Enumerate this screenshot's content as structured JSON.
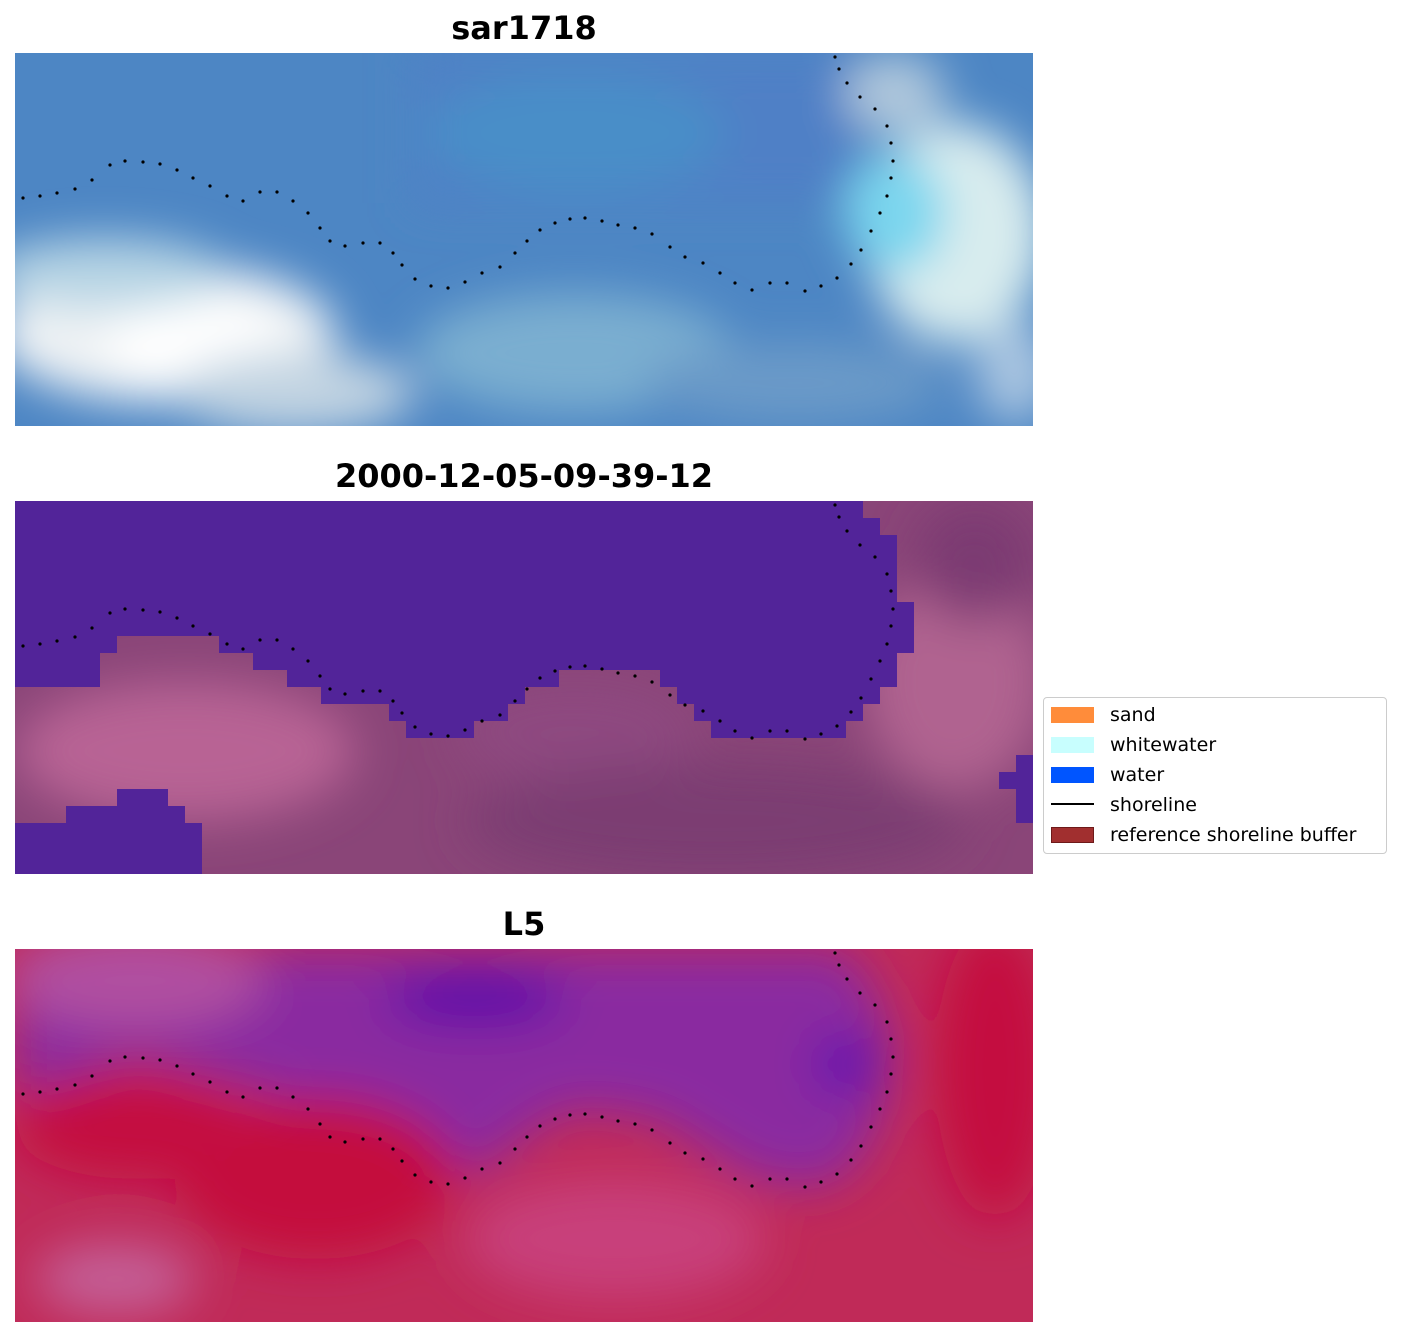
{
  "panels": [
    {
      "title": "sar1718",
      "image": "true-color satellite image tile"
    },
    {
      "title": "2000-12-05-09-39-12",
      "image": "classified image overlay"
    },
    {
      "title": "L5",
      "image": "index image tile"
    }
  ],
  "legend": {
    "items": [
      {
        "label": "sand",
        "color": "#ff8c3a"
      },
      {
        "label": "whitewater",
        "color": "#c8fefe"
      },
      {
        "label": "water",
        "color": "#0055ff"
      },
      {
        "label": "shoreline",
        "color": "#000000"
      },
      {
        "label": "reference shoreline buffer",
        "color": "#a12f2f"
      }
    ]
  },
  "colors": {
    "water_class": "#522499",
    "land_class": "#8a4578",
    "rgb_water": "#4a86c2",
    "rgb_foam": "#eef4f6",
    "index_high": "#c01240",
    "index_low": "#7a22a0"
  }
}
